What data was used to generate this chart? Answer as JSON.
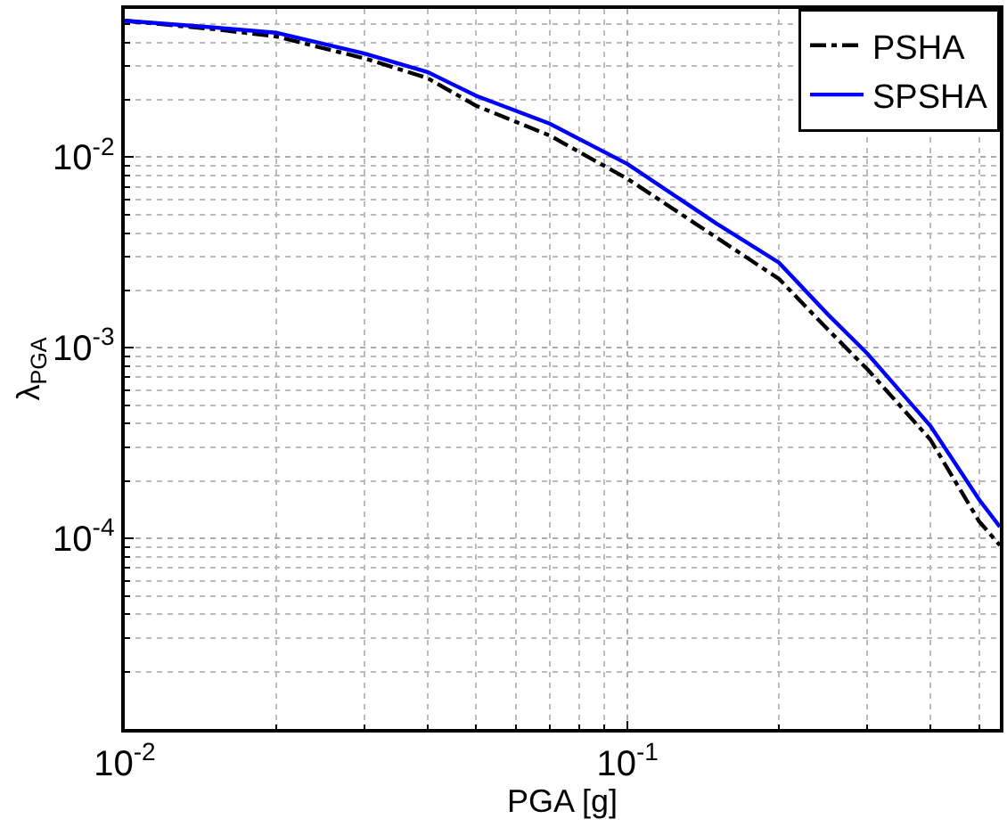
{
  "chart_data": {
    "type": "line",
    "xlabel": "PGA [g]",
    "ylabel": "λ$_{PGA}$",
    "log": "xy",
    "grid": true,
    "legend": "top right",
    "x": [
      0.01,
      0.015,
      0.02,
      0.03,
      0.04,
      0.05,
      0.07,
      0.1,
      0.15,
      0.2,
      0.25,
      0.3,
      0.4,
      0.5,
      0.55
    ],
    "series": [
      {
        "name": "PSHA",
        "color": "#000000",
        "line_style": "dashdot",
        "values": [
          0.052,
          0.047,
          0.043,
          0.033,
          0.026,
          0.0186,
          0.013,
          0.0077,
          0.0038,
          0.0023,
          0.00125,
          0.00077,
          0.00033,
          0.000123,
          9.2e-05
        ]
      },
      {
        "name": "SPSHA",
        "color": "#0000ff",
        "line_style": "solid",
        "values": [
          0.052,
          0.048,
          0.045,
          0.035,
          0.028,
          0.021,
          0.015,
          0.0092,
          0.0045,
          0.0028,
          0.0015,
          0.00093,
          0.00039,
          0.00016,
          0.000115
        ]
      }
    ],
    "xlim": [
      0.01,
      0.55
    ],
    "xticks": [
      {
        "value": 0.01,
        "label": "10$^{-2}$"
      },
      {
        "value": 0.1,
        "label": "10$^{-1}$"
      }
    ],
    "ylim": [
      1e-05,
      0.06
    ],
    "yticks": [
      {
        "value": 0.01,
        "label": "10$^{-2}$"
      },
      {
        "value": 0.001,
        "label": "10$^{-3}$"
      },
      {
        "value": 0.0001,
        "label": "10$^{-4}$"
      }
    ]
  }
}
